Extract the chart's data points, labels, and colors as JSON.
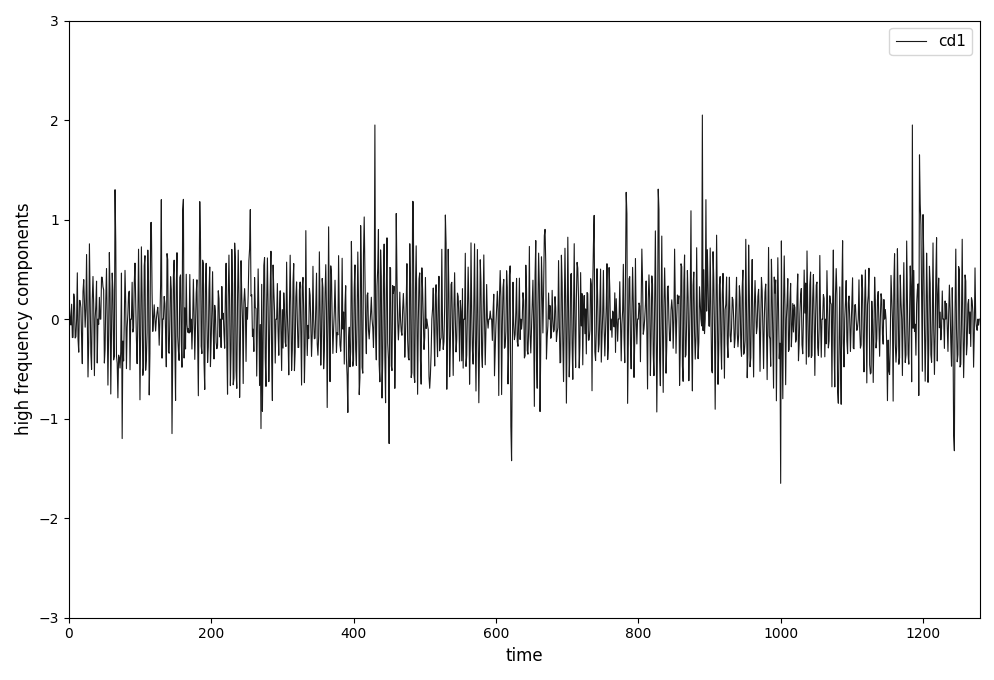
{
  "title": "",
  "xlabel": "time",
  "ylabel": "high frequency components",
  "legend_label": "cd1",
  "xlim": [
    0,
    1280
  ],
  "ylim": [
    -3,
    3
  ],
  "yticks": [
    -3,
    -2,
    -1,
    0,
    1,
    2,
    3
  ],
  "xticks": [
    0,
    200,
    400,
    600,
    800,
    1000,
    1200
  ],
  "line_color": "#1a1a1a",
  "line_width": 0.8,
  "background_color": "#ffffff",
  "n_points": 1280,
  "seed": 12345,
  "figsize": [
    9.95,
    6.8
  ],
  "dpi": 100
}
